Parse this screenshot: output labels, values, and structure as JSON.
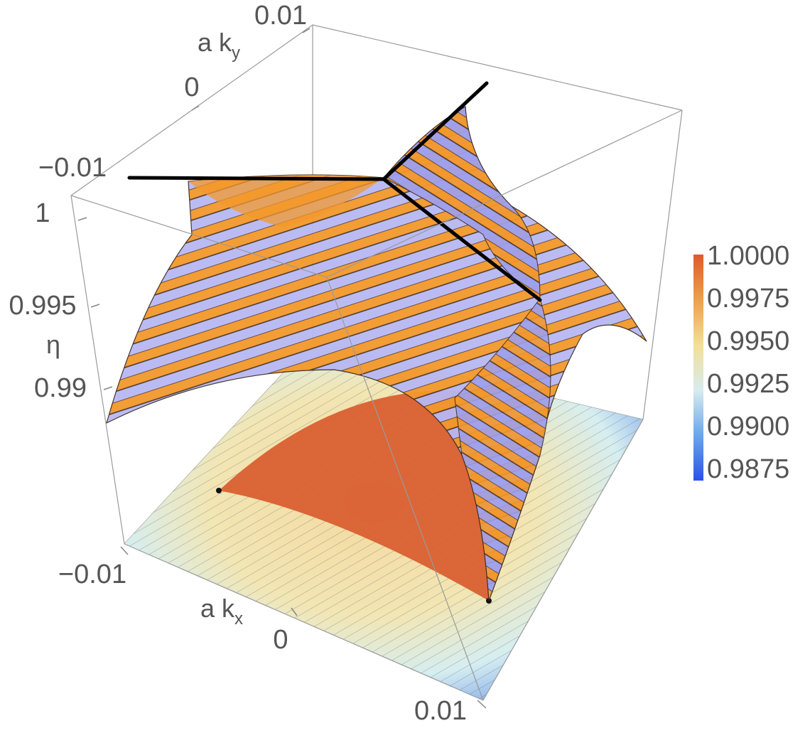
{
  "chart_data": {
    "type": "surface3d",
    "title": "",
    "axes": {
      "x": {
        "label_base": "a k",
        "label_sub": "x",
        "range": [
          -0.01,
          0.01
        ],
        "ticks": [
          "-0.01",
          "0",
          "0.01"
        ]
      },
      "y": {
        "label_base": "a k",
        "label_sub": "y",
        "range": [
          -0.01,
          0.01
        ],
        "ticks": [
          "-0.01",
          "0",
          "0.01"
        ]
      },
      "z": {
        "label": "η",
        "ticks": [
          "1",
          "0.995",
          "0.99"
        ]
      }
    },
    "colorbar": {
      "ticks": [
        "1.0000",
        "0.9975",
        "0.9950",
        "0.9925",
        "0.9900",
        "0.9875"
      ],
      "range": [
        0.9875,
        1.0
      ],
      "colors": [
        "#e05a2a",
        "#eda04b",
        "#f3df98",
        "#d7ecee",
        "#6aa6ec",
        "#2a52e8"
      ]
    },
    "surface_colors": {
      "stripe_orange": "#f3982c",
      "stripe_lavender": "#b8b8f4",
      "dark_purple": "#6a5a9a",
      "floor_center": "#d95f32",
      "line_overlay": "#000000"
    },
    "annotation": "three black lines meeting at a point at the top of the surface"
  }
}
